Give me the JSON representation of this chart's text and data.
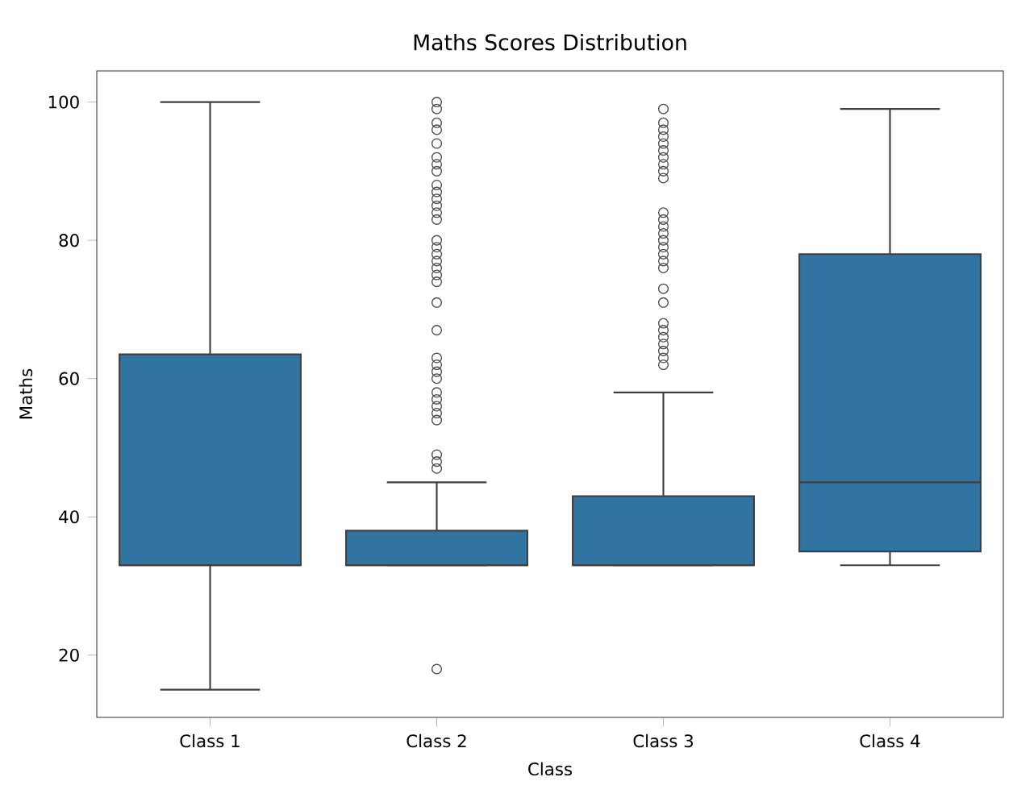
{
  "chart_data": {
    "type": "box",
    "title": "Maths Scores Distribution",
    "xlabel": "Class",
    "ylabel": "Maths",
    "categories": [
      "Class 1",
      "Class 2",
      "Class 3",
      "Class 4"
    ],
    "color": "#3274a1",
    "ylim": [
      11,
      104.5
    ],
    "yticks": [
      20,
      40,
      60,
      80,
      100
    ],
    "boxes": [
      {
        "low": 15,
        "q1": 33,
        "median": 33,
        "q3": 63.5,
        "high": 100
      },
      {
        "low": 33,
        "q1": 33,
        "median": 33,
        "q3": 38,
        "high": 45,
        "outliers": [
          18,
          47,
          48,
          49,
          54,
          55,
          56,
          57,
          58,
          60,
          61,
          62,
          63,
          67,
          71,
          74,
          75,
          76,
          77,
          78,
          79,
          80,
          83,
          84,
          85,
          86,
          87,
          88,
          90,
          91,
          92,
          94,
          96,
          97,
          99,
          100
        ]
      },
      {
        "low": 33,
        "q1": 33,
        "median": 33,
        "q3": 43,
        "high": 58,
        "outliers": [
          62,
          63,
          64,
          65,
          66,
          67,
          68,
          71,
          73,
          76,
          77,
          78,
          79,
          80,
          81,
          82,
          83,
          84,
          89,
          90,
          91,
          92,
          93,
          94,
          95,
          96,
          97,
          99
        ]
      },
      {
        "low": 33,
        "q1": 35,
        "median": 45,
        "q3": 78,
        "high": 99
      }
    ]
  }
}
